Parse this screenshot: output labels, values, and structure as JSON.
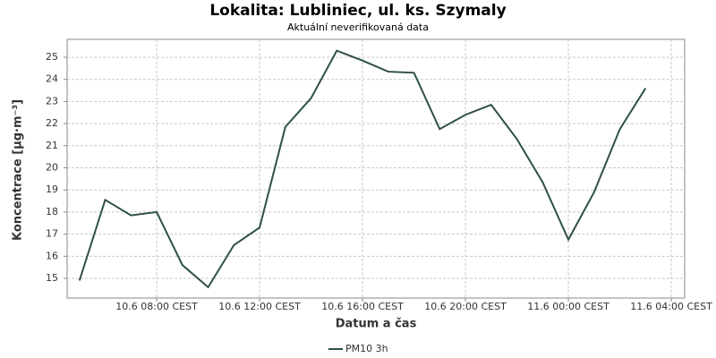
{
  "chart_data": {
    "type": "line",
    "title": "Lokalita: Lubliniec, ul. ks. Szymaly",
    "subtitle": "Aktuální neverifikovaná data",
    "x_label": "Datum a čas",
    "y_label": "Koncentrace [µg·m⁻³]",
    "x": [
      5,
      6,
      7,
      8,
      9,
      10,
      11,
      12,
      13,
      14,
      15,
      16,
      17,
      18,
      19,
      20,
      21,
      22,
      23,
      24,
      25,
      26,
      27
    ],
    "series": [
      {
        "name": "PM10 3h",
        "color": "#2f4f4a",
        "values": [
          14.9,
          18.55,
          17.85,
          18.0,
          15.6,
          14.6,
          16.5,
          17.3,
          21.85,
          23.15,
          25.3,
          24.85,
          24.35,
          24.3,
          21.75,
          22.4,
          22.85,
          21.3,
          19.35,
          16.75,
          18.9,
          21.75,
          23.6
        ]
      }
    ],
    "xlim": [
      4.52,
      28.52
    ],
    "xticks": [
      {
        "value": 8,
        "label": "10.6 08:00 CEST"
      },
      {
        "value": 12,
        "label": "10.6 12:00 CEST"
      },
      {
        "value": 16,
        "label": "10.6 16:00 CEST"
      },
      {
        "value": 20,
        "label": "10.6 20:00 CEST"
      },
      {
        "value": 24,
        "label": "11.6 00:00 CEST"
      },
      {
        "value": 28,
        "label": "11.6 04:00 CEST"
      }
    ],
    "ylim": [
      14.11,
      25.81
    ],
    "yticks": [
      15,
      16,
      17,
      18,
      19,
      20,
      21,
      22,
      23,
      24,
      25
    ],
    "grid": true
  }
}
